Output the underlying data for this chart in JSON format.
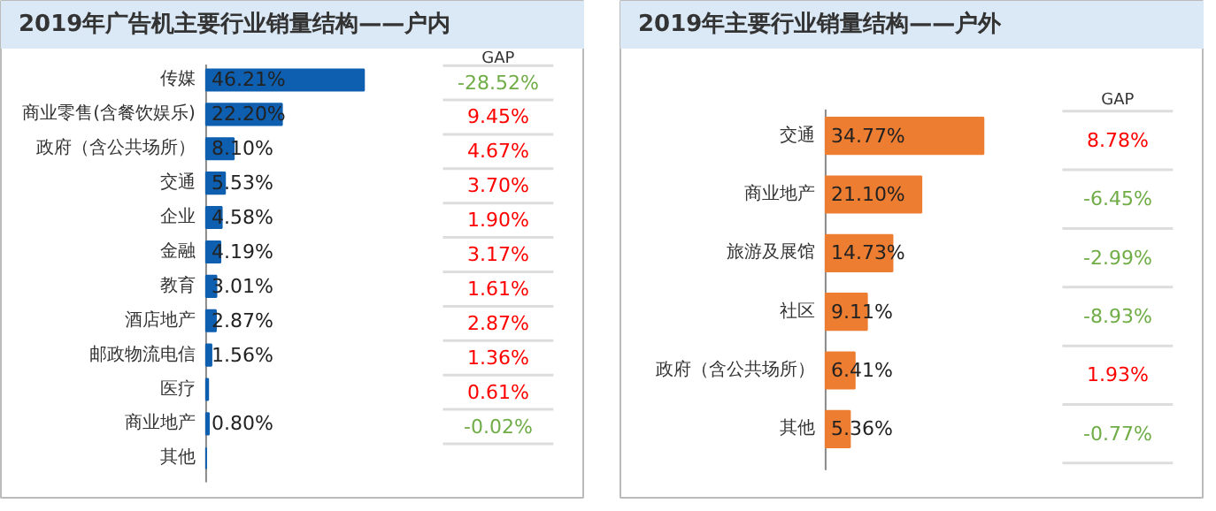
{
  "chart_data": [
    {
      "type": "bar",
      "orientation": "horizontal",
      "title": "2019年广告机主要行业销量结构——户内",
      "categories": [
        "传媒",
        "商业零售(含餐饮娱乐)",
        "政府（含公共场所）",
        "交通",
        "企业",
        "金融",
        "教育",
        "酒店地产",
        "邮政物流电信",
        "医疗",
        "商业地产",
        "其他"
      ],
      "values": [
        46.21,
        22.2,
        8.1,
        5.53,
        4.58,
        4.19,
        3.01,
        2.87,
        1.56,
        0.6,
        0.8,
        0
      ],
      "color": "#0f5fb0",
      "value_labels": [
        "46.21%",
        "22.20%",
        "8.10%",
        "5.53%",
        "4.58%",
        "4.19%",
        "3.01%",
        "2.87%",
        "1.56%",
        null,
        "0.80%",
        null
      ],
      "annotations": [
        "GAP",
        "-28.52%",
        "9.45%",
        "4.67%",
        "3.70%",
        "1.90%",
        "3.17%",
        "1.61%",
        "2.87%",
        "1.36%",
        "0.61%",
        "-0.02%"
      ]
    },
    {
      "type": "bar",
      "orientation": "horizontal",
      "title": "2019年主要行业销量结构——户外",
      "categories": [
        "交通",
        "商业地产",
        "旅游及展馆",
        "社区",
        "政府（含公共场所）",
        "其他"
      ],
      "values": [
        34.77,
        21.1,
        14.73,
        9.11,
        6.41,
        5.36
      ],
      "color": "#ed7d31",
      "value_labels": [
        "34.77%",
        "21.10%",
        "14.73%",
        "9.11%",
        "6.41%",
        "5.36%"
      ],
      "annotations": [
        "GAP",
        "8.78%",
        "-6.45%",
        "-2.99%",
        "-8.93%",
        "1.93%",
        "-0.77%"
      ]
    }
  ]
}
